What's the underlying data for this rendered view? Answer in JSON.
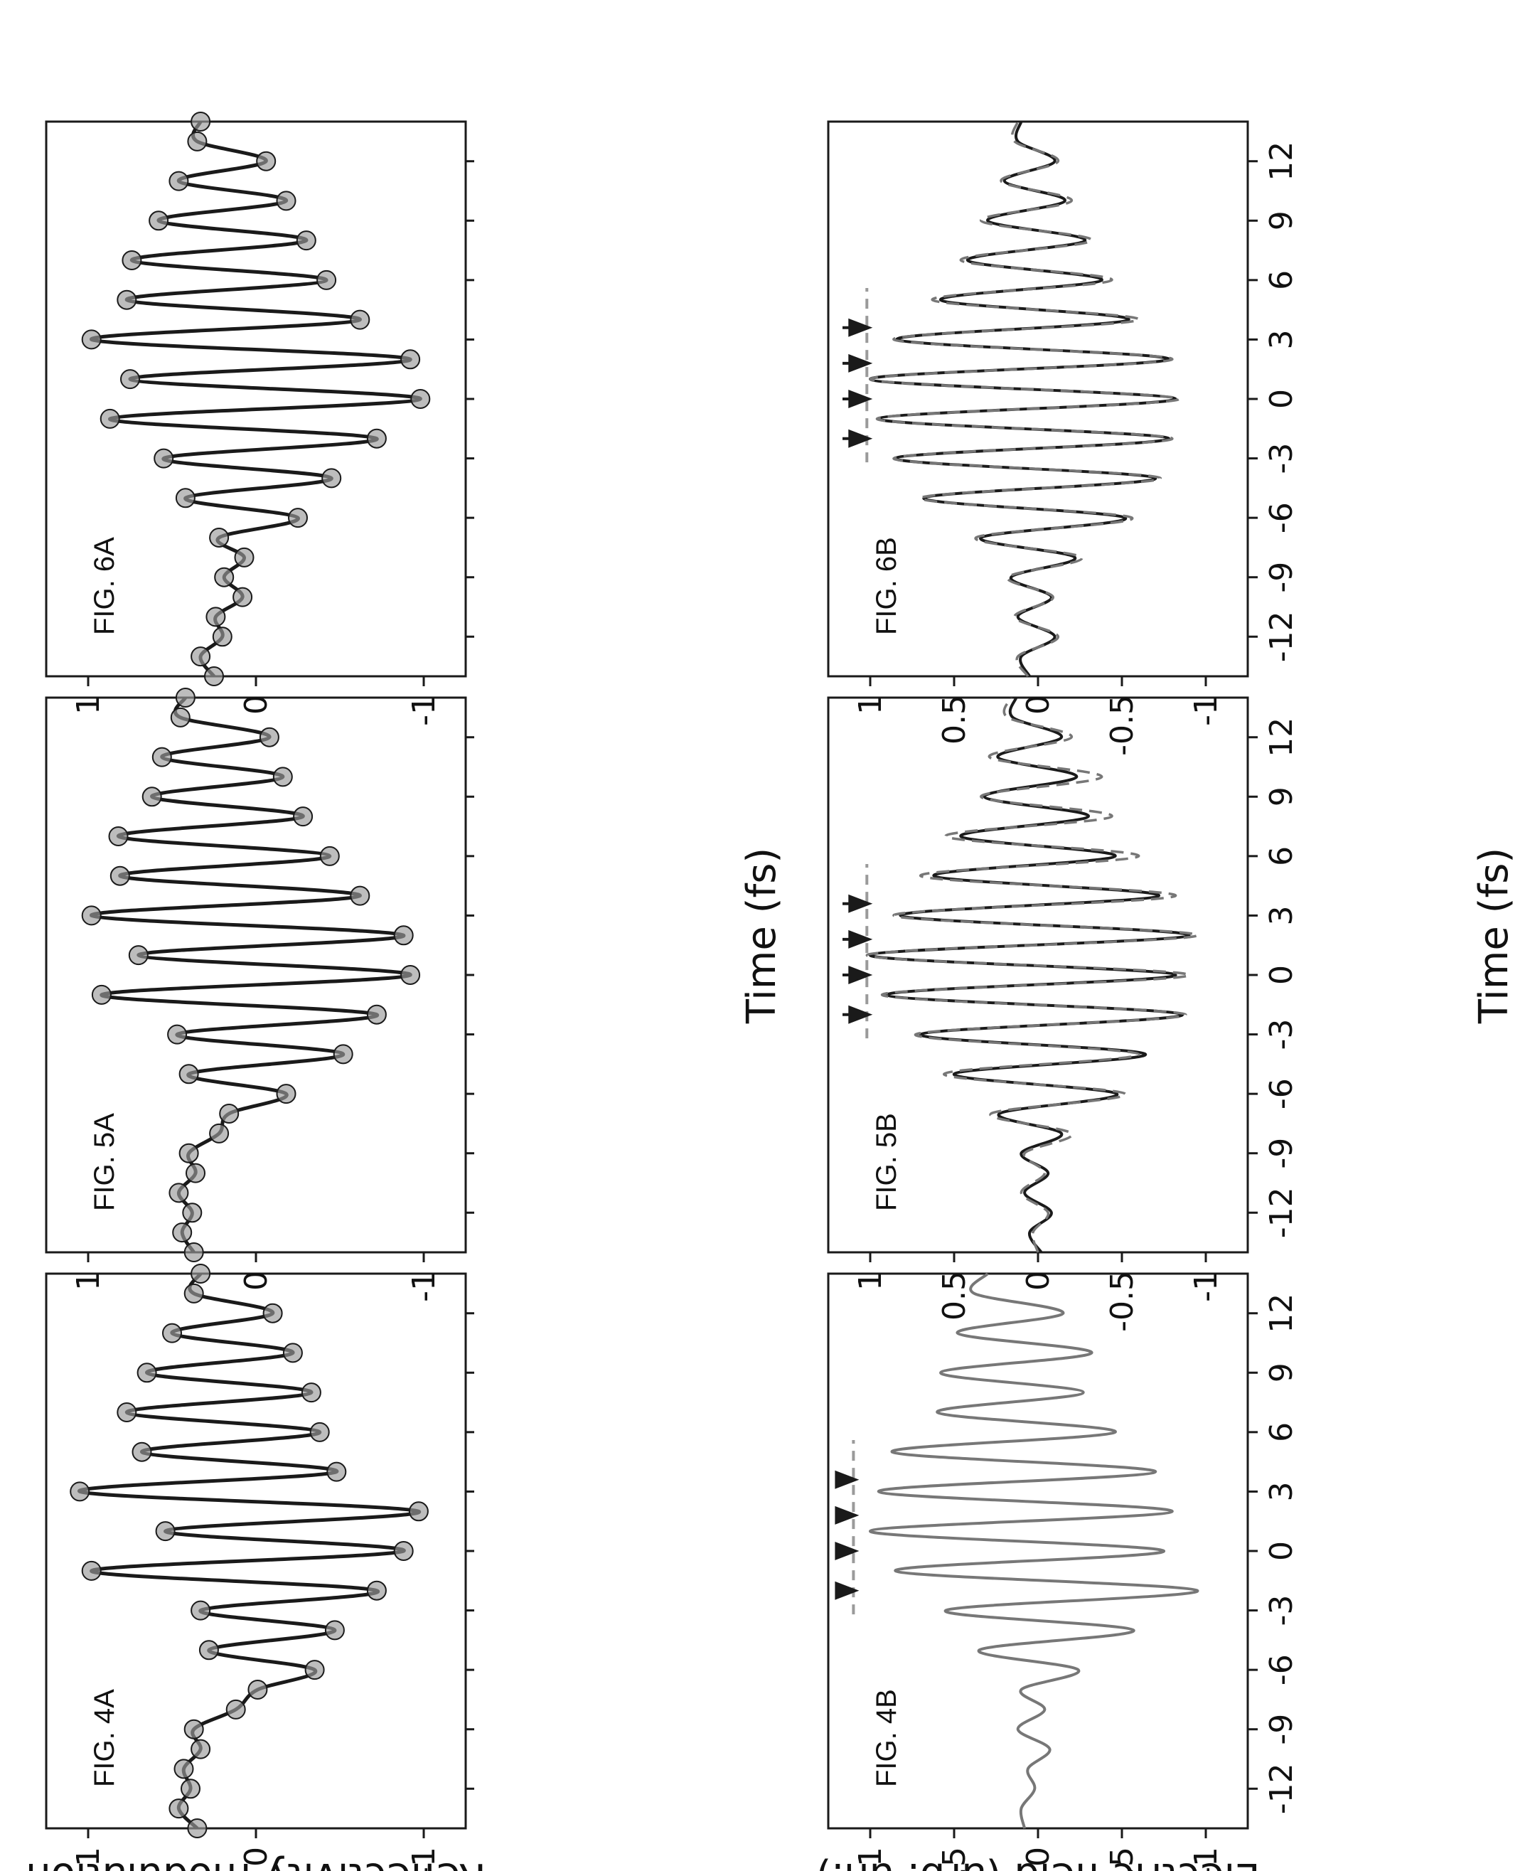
{
  "figure": {
    "x_axis_label": "Time (fs)",
    "left_y_axis_label": "Reflectivity modulation",
    "right_y_axis_label": "Electric field (arb. un.)"
  },
  "colors": {
    "primary_trace": "#1a1a1a",
    "secondary_trace": "#777777",
    "marker_fill": "#9a9a9a",
    "reference_line": "#9a9a9a"
  },
  "chart_data": [
    {
      "type": "line",
      "label": "FIG. 4A",
      "xlim": [
        -14,
        14
      ],
      "ylim": [
        -1.25,
        1.25
      ],
      "x_ticks": [
        "-12",
        "-9",
        "-6",
        "-3",
        "0",
        "3",
        "6",
        "9",
        "12"
      ],
      "y_ticks": [
        "1",
        "0",
        "-1"
      ],
      "series": [
        {
          "x": [
            -14,
            -13,
            -12,
            -11,
            -10,
            -9,
            -8,
            -7,
            -6,
            -5,
            -4,
            -3,
            -2,
            -1,
            0,
            1,
            2,
            3,
            4,
            5,
            6,
            7,
            8,
            9,
            10,
            11,
            12,
            13,
            14
          ],
          "y": [
            0.35,
            0.46,
            0.39,
            0.43,
            0.33,
            0.37,
            0.12,
            -0.01,
            -0.35,
            0.28,
            -0.47,
            0.33,
            -0.72,
            0.98,
            -0.88,
            0.54,
            -0.97,
            1.05,
            -0.48,
            0.68,
            -0.38,
            0.77,
            -0.33,
            0.65,
            -0.22,
            0.5,
            -0.1,
            0.37,
            0.33
          ]
        }
      ]
    },
    {
      "type": "line",
      "label": "FIG. 5A",
      "xlim": [
        -14,
        14
      ],
      "ylim": [
        -1.25,
        1.25
      ],
      "x_ticks": [
        "-12",
        "-9",
        "-6",
        "-3",
        "0",
        "3",
        "6",
        "9",
        "12"
      ],
      "y_ticks": [
        "1",
        "0",
        "-1"
      ],
      "series": [
        {
          "x": [
            -14,
            -13,
            -12,
            -11,
            -10,
            -9,
            -8,
            -7,
            -6,
            -5,
            -4,
            -3,
            -2,
            -1,
            0,
            1,
            2,
            3,
            4,
            5,
            6,
            7,
            8,
            9,
            10,
            11,
            12,
            13,
            14
          ],
          "y": [
            0.37,
            0.44,
            0.38,
            0.46,
            0.36,
            0.4,
            0.22,
            0.16,
            -0.18,
            0.4,
            -0.52,
            0.47,
            -0.72,
            0.92,
            -0.92,
            0.7,
            -0.88,
            0.98,
            -0.62,
            0.81,
            -0.44,
            0.82,
            -0.28,
            0.62,
            -0.16,
            0.56,
            -0.08,
            0.45,
            0.42
          ]
        }
      ]
    },
    {
      "type": "line",
      "label": "FIG. 6A",
      "xlim": [
        -14,
        14
      ],
      "ylim": [
        -1.25,
        1.25
      ],
      "x_ticks": [
        "-12",
        "-9",
        "-6",
        "-3",
        "0",
        "3",
        "6",
        "9",
        "12"
      ],
      "y_ticks": [
        "1",
        "0",
        "-1"
      ],
      "series": [
        {
          "x": [
            -14,
            -13,
            -12,
            -11,
            -10,
            -9,
            -8,
            -7,
            -6,
            -5,
            -4,
            -3,
            -2,
            -1,
            0,
            1,
            2,
            3,
            4,
            5,
            6,
            7,
            8,
            9,
            10,
            11,
            12,
            13,
            14
          ],
          "y": [
            0.25,
            0.33,
            0.2,
            0.24,
            0.08,
            0.19,
            0.07,
            0.22,
            -0.25,
            0.42,
            -0.45,
            0.55,
            -0.72,
            0.87,
            -0.98,
            0.75,
            -0.92,
            0.98,
            -0.62,
            0.77,
            -0.42,
            0.74,
            -0.3,
            0.58,
            -0.18,
            0.46,
            -0.06,
            0.35,
            0.33
          ]
        }
      ]
    },
    {
      "type": "line",
      "label": "FIG. 4B",
      "xlim": [
        -14,
        14
      ],
      "ylim": [
        -1.25,
        1.25
      ],
      "x_ticks": [
        "-12",
        "-9",
        "-6",
        "-3",
        "0",
        "3",
        "6",
        "9",
        "12"
      ],
      "y_ticks": [
        "1",
        "0.5",
        "0",
        "-0.5",
        "-1"
      ],
      "reference_level": 1.1,
      "arrows_x": [
        -2,
        0,
        1.8,
        3.6
      ],
      "series": [
        {
          "x": [
            -14,
            -13,
            -12,
            -11,
            -10,
            -9,
            -8,
            -7,
            -6,
            -5,
            -4,
            -3,
            -2,
            -1,
            0,
            1,
            2,
            3,
            4,
            5,
            6,
            7,
            8,
            9,
            10,
            11,
            12,
            13,
            14
          ],
          "y": [
            0.08,
            0.1,
            0.02,
            0.06,
            -0.07,
            0.12,
            -0.04,
            0.1,
            -0.24,
            0.35,
            -0.57,
            0.55,
            -0.95,
            0.85,
            -0.75,
            1.0,
            -0.8,
            0.95,
            -0.7,
            0.87,
            -0.46,
            0.6,
            -0.27,
            0.58,
            -0.32,
            0.48,
            -0.15,
            0.38,
            0.3
          ]
        }
      ]
    },
    {
      "type": "line",
      "label": "FIG. 5B",
      "xlim": [
        -14,
        14
      ],
      "ylim": [
        -1.25,
        1.25
      ],
      "x_ticks": [
        "-12",
        "-9",
        "-6",
        "-3",
        "0",
        "3",
        "6",
        "9",
        "12"
      ],
      "y_ticks": [
        "1",
        "0.5",
        "0",
        "-0.5",
        "-1"
      ],
      "reference_level": 1.02,
      "arrows_x": [
        -2,
        0,
        1.8,
        3.6
      ],
      "series": [
        {
          "x": [
            -14,
            -13,
            -12,
            -11,
            -10,
            -9,
            -8,
            -7,
            -6,
            -5,
            -4,
            -3,
            -2,
            -1,
            0,
            1,
            2,
            3,
            4,
            5,
            6,
            7,
            8,
            9,
            10,
            11,
            12,
            13,
            14
          ],
          "y": [
            -0.02,
            0.05,
            -0.08,
            0.08,
            -0.06,
            0.1,
            -0.14,
            0.23,
            -0.47,
            0.5,
            -0.64,
            0.7,
            -0.86,
            0.9,
            -0.82,
            1.0,
            -0.9,
            0.82,
            -0.72,
            0.62,
            -0.46,
            0.46,
            -0.3,
            0.32,
            -0.23,
            0.24,
            -0.14,
            0.15,
            0.13
          ]
        },
        {
          "x": [
            -14,
            -13,
            -12,
            -11,
            -10,
            -9,
            -8,
            -7,
            -6,
            -5,
            -4,
            -3,
            -2,
            -1,
            0,
            1,
            2,
            3,
            4,
            5,
            6,
            7,
            8,
            9,
            10,
            11,
            12,
            13,
            14
          ],
          "y": [
            0.0,
            0.03,
            -0.06,
            0.1,
            -0.04,
            0.08,
            -0.2,
            0.28,
            -0.52,
            0.56,
            -0.6,
            0.73,
            -0.88,
            0.93,
            -0.9,
            1.02,
            -0.95,
            0.86,
            -0.82,
            0.7,
            -0.6,
            0.55,
            -0.44,
            0.34,
            -0.38,
            0.29,
            -0.2,
            0.18,
            0.16
          ]
        }
      ]
    },
    {
      "type": "line",
      "label": "FIG. 6B",
      "xlim": [
        -14,
        14
      ],
      "ylim": [
        -1.25,
        1.25
      ],
      "x_ticks": [
        "-12",
        "-9",
        "-6",
        "-3",
        "0",
        "3",
        "6",
        "9",
        "12"
      ],
      "y_ticks": [
        "1",
        "0.5",
        "0",
        "-0.5",
        "-1"
      ],
      "reference_level": 1.02,
      "arrows_x": [
        -2,
        0,
        1.8,
        3.6
      ],
      "series": [
        {
          "x": [
            -14,
            -13,
            -12,
            -11,
            -10,
            -9,
            -8,
            -7,
            -6,
            -5,
            -4,
            -3,
            -2,
            -1,
            0,
            1,
            2,
            3,
            4,
            5,
            6,
            7,
            8,
            9,
            10,
            11,
            12,
            13,
            14
          ],
          "y": [
            0.05,
            0.1,
            -0.1,
            0.12,
            -0.08,
            0.16,
            -0.22,
            0.34,
            -0.52,
            0.68,
            -0.7,
            0.85,
            -0.78,
            0.95,
            -0.82,
            1.0,
            -0.78,
            0.84,
            -0.54,
            0.58,
            -0.38,
            0.42,
            -0.28,
            0.3,
            -0.16,
            0.2,
            -0.1,
            0.12,
            0.1
          ]
        },
        {
          "x": [
            -14,
            -13,
            -12,
            -11,
            -10,
            -9,
            -8,
            -7,
            -6,
            -5,
            -4,
            -3,
            -2,
            -1,
            0,
            1,
            2,
            3,
            4,
            5,
            6,
            7,
            8,
            9,
            10,
            11,
            12,
            13,
            14
          ],
          "y": [
            0.06,
            0.12,
            -0.12,
            0.14,
            -0.09,
            0.18,
            -0.26,
            0.37,
            -0.56,
            0.7,
            -0.73,
            0.86,
            -0.8,
            0.96,
            -0.84,
            1.0,
            -0.8,
            0.86,
            -0.6,
            0.63,
            -0.44,
            0.46,
            -0.32,
            0.34,
            -0.2,
            0.22,
            -0.12,
            0.14,
            0.12
          ]
        }
      ]
    }
  ]
}
